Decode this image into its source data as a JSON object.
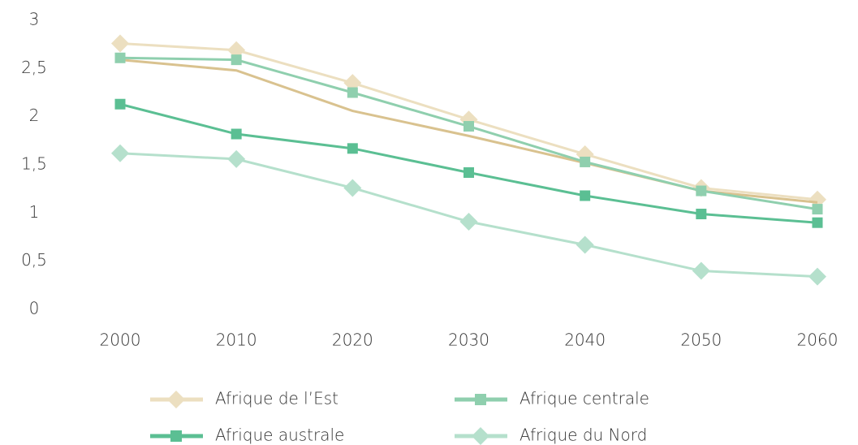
{
  "chart_data": {
    "type": "line",
    "categories": [
      "2000",
      "2010",
      "2020",
      "2030",
      "2040",
      "2050",
      "2060"
    ],
    "series": [
      {
        "name": "Afrique de l’Est",
        "color": "#ecdfc0",
        "marker": "diamond",
        "values": [
          2.76,
          2.69,
          2.35,
          1.97,
          1.61,
          1.26,
          1.14
        ]
      },
      {
        "color": "#d9c28f",
        "values": [
          2.59,
          2.48,
          2.06,
          1.8,
          1.52,
          1.23,
          1.11
        ]
      },
      {
        "name": "Afrique centrale",
        "color": "#8fcfae",
        "marker": "square",
        "values": [
          2.61,
          2.59,
          2.25,
          1.9,
          1.53,
          1.23,
          1.04
        ]
      },
      {
        "name": "Afrique australe",
        "color": "#5bbf93",
        "marker": "square",
        "values": [
          2.13,
          1.82,
          1.67,
          1.42,
          1.18,
          0.99,
          0.9
        ]
      },
      {
        "name": "Afrique du Nord",
        "color": "#b5e0cc",
        "marker": "diamond",
        "values": [
          1.62,
          1.56,
          1.26,
          0.91,
          0.67,
          0.4,
          0.34
        ]
      }
    ],
    "ylim": [
      0,
      3
    ],
    "yticks": [
      0,
      {
        "value": 0.5,
        "label": "0,5"
      },
      1,
      {
        "value": 1.5,
        "label": "1,5"
      },
      2,
      {
        "value": 2.5,
        "label": "2,5"
      },
      3
    ],
    "grid": false
  }
}
